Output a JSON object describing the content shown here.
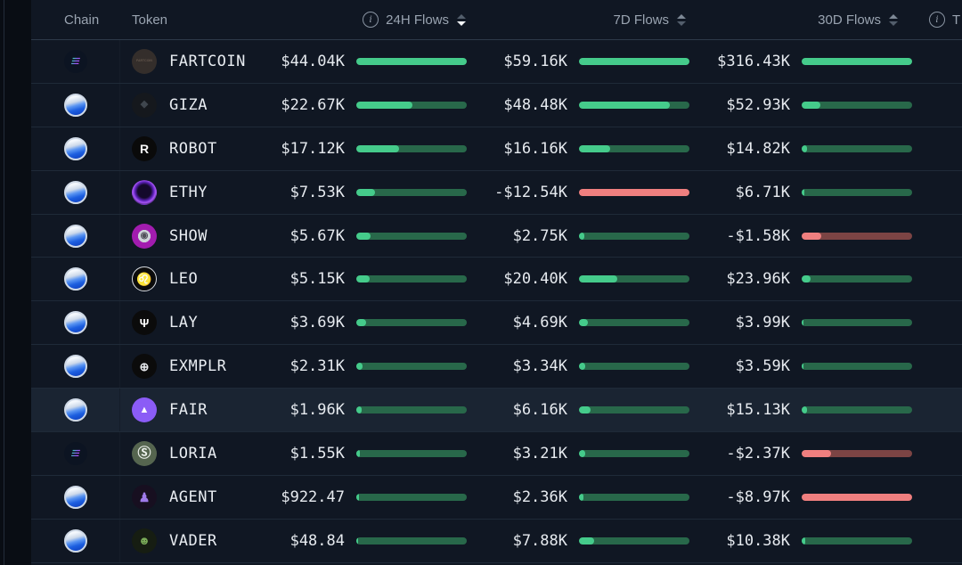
{
  "colors": {
    "bar_green": "#45cb8b",
    "bar_green_track": "#28684a",
    "bar_red": "#ef7f7f",
    "bar_red_track": "#7c4444",
    "row_bg": "#101723",
    "row_highlight": "#1a2432",
    "header_text": "#9aa4b1",
    "value_text": "#e6eaef",
    "border": "#1f2a38"
  },
  "header": {
    "chain": "Chain",
    "token": "Token",
    "h24": "24H Flows",
    "d7": "7D Flows",
    "d30": "30D Flows",
    "last_partial": "T",
    "info_glyph": "i",
    "sort": {
      "column": "24H Flows",
      "direction": "desc"
    }
  },
  "rows": [
    {
      "chain": "solana",
      "chain_glyph": "≡",
      "token": "FARTCOIN",
      "icon": {
        "bg": "#342e2b",
        "fg": "#63564c",
        "glyph": "FARTCOIN",
        "fs": "3.5px"
      },
      "h24": {
        "label": "$44.04K",
        "pct": "100%",
        "neg": "false"
      },
      "d7": {
        "label": "$59.16K",
        "pct": "100%",
        "neg": "false"
      },
      "d30": {
        "label": "$316.43K",
        "pct": "100%",
        "neg": "false"
      }
    },
    {
      "chain": "virtuals",
      "chain_glyph": "",
      "token": "GIZA",
      "icon": {
        "bg": "#15181d",
        "fg": "#3f464e",
        "glyph": "◆",
        "fs": "11px"
      },
      "h24": {
        "label": "$22.67K",
        "pct": "51%",
        "neg": "false"
      },
      "d7": {
        "label": "$48.48K",
        "pct": "82%",
        "neg": "false"
      },
      "d30": {
        "label": "$52.93K",
        "pct": "17%",
        "neg": "false"
      }
    },
    {
      "chain": "virtuals",
      "chain_glyph": "",
      "token": "ROBOT",
      "icon": {
        "bg": "#0a0a0a",
        "fg": "#f5f5f5",
        "glyph": "R",
        "fs": "14px"
      },
      "h24": {
        "label": "$17.12K",
        "pct": "39%",
        "neg": "false"
      },
      "d7": {
        "label": "$16.16K",
        "pct": "28%",
        "neg": "false"
      },
      "d30": {
        "label": "$14.82K",
        "pct": "5%",
        "neg": "false"
      }
    },
    {
      "chain": "virtuals",
      "chain_glyph": "",
      "token": "ETHY",
      "icon": {
        "bg": "radial-gradient(circle at 50% 45%, #14092b 38%, #5b21b6 54%, #a855f7 66%, #27124a 82%, #1a0f33 100%)",
        "fg": "#a855f7",
        "glyph": "",
        "fs": "12px"
      },
      "h24": {
        "label": "$7.53K",
        "pct": "17%",
        "neg": "false"
      },
      "d7": {
        "label": "-$12.54K",
        "pct": "100%",
        "neg": "true"
      },
      "d30": {
        "label": "$6.71K",
        "pct": "2.5%",
        "neg": "false"
      }
    },
    {
      "chain": "virtuals",
      "chain_glyph": "",
      "token": "SHOW",
      "icon": {
        "bg": "radial-gradient(circle, #cfd4da 0 38%, #a21caf 39% 100%)",
        "fg": "#52525b",
        "glyph": "◉",
        "fs": "10px"
      },
      "h24": {
        "label": "$5.67K",
        "pct": "13%",
        "neg": "false"
      },
      "d7": {
        "label": "$2.75K",
        "pct": "5%",
        "neg": "false"
      },
      "d30": {
        "label": "-$1.58K",
        "pct": "18%",
        "neg": "true"
      }
    },
    {
      "chain": "virtuals",
      "chain_glyph": "",
      "token": "LEO",
      "icon": {
        "bg": "#0b0b0b",
        "fg": "#f3f4f6",
        "glyph": "♌",
        "fs": "14px",
        "ring": "#d7dbe1"
      },
      "h24": {
        "label": "$5.15K",
        "pct": "12%",
        "neg": "false"
      },
      "d7": {
        "label": "$20.40K",
        "pct": "35%",
        "neg": "false"
      },
      "d30": {
        "label": "$23.96K",
        "pct": "8%",
        "neg": "false"
      }
    },
    {
      "chain": "virtuals",
      "chain_glyph": "",
      "token": "LAY",
      "icon": {
        "bg": "#0b0b0b",
        "fg": "#ffffff",
        "glyph": "Ψ",
        "fs": "13px"
      },
      "h24": {
        "label": "$3.69K",
        "pct": "8.5%",
        "neg": "false"
      },
      "d7": {
        "label": "$4.69K",
        "pct": "8%",
        "neg": "false"
      },
      "d30": {
        "label": "$3.99K",
        "pct": "2%",
        "neg": "false"
      }
    },
    {
      "chain": "virtuals",
      "chain_glyph": "",
      "token": "EXMPLR",
      "icon": {
        "bg": "#0b0b0b",
        "fg": "#e5e7eb",
        "glyph": "⊕",
        "fs": "13px"
      },
      "h24": {
        "label": "$2.31K",
        "pct": "5.5%",
        "neg": "false"
      },
      "d7": {
        "label": "$3.34K",
        "pct": "6%",
        "neg": "false"
      },
      "d30": {
        "label": "$3.59K",
        "pct": "1.5%",
        "neg": "false"
      }
    },
    {
      "chain": "virtuals",
      "chain_glyph": "",
      "token": "FAIR",
      "active": "true",
      "icon": {
        "bg": "#8b5cf6",
        "fg": "#ffffff",
        "glyph": "▲",
        "fs": "11px"
      },
      "h24": {
        "label": "$1.96K",
        "pct": "4.5%",
        "neg": "false"
      },
      "d7": {
        "label": "$6.16K",
        "pct": "10.5%",
        "neg": "false"
      },
      "d30": {
        "label": "$15.13K",
        "pct": "5%",
        "neg": "false"
      }
    },
    {
      "chain": "solana",
      "chain_glyph": "≡",
      "token": "LORIA",
      "icon": {
        "bg": "#55654f",
        "fg": "#eef2ee",
        "glyph": "Ⓢ",
        "fs": "15px"
      },
      "h24": {
        "label": "$1.55K",
        "pct": "3.5%",
        "neg": "false"
      },
      "d7": {
        "label": "$3.21K",
        "pct": "5.5%",
        "neg": "false"
      },
      "d30": {
        "label": "-$2.37K",
        "pct": "27%",
        "neg": "true"
      }
    },
    {
      "chain": "virtuals",
      "chain_glyph": "",
      "token": "AGENT",
      "icon": {
        "bg": "#170f20",
        "fg": "#9f7aea",
        "glyph": "♟",
        "fs": "14px"
      },
      "h24": {
        "label": "$922.47",
        "pct": "2.5%",
        "neg": "false"
      },
      "d7": {
        "label": "$2.36K",
        "pct": "4%",
        "neg": "false"
      },
      "d30": {
        "label": "-$8.97K",
        "pct": "100%",
        "neg": "true"
      }
    },
    {
      "chain": "virtuals",
      "chain_glyph": "",
      "token": "VADER",
      "icon": {
        "bg": "#161d12",
        "fg": "#79aa58",
        "glyph": "☻",
        "fs": "13px"
      },
      "h24": {
        "label": "$48.84",
        "pct": "1.5%",
        "neg": "false"
      },
      "d7": {
        "label": "$7.88K",
        "pct": "13.5%",
        "neg": "false"
      },
      "d30": {
        "label": "$10.38K",
        "pct": "3.5%",
        "neg": "false"
      }
    }
  ]
}
